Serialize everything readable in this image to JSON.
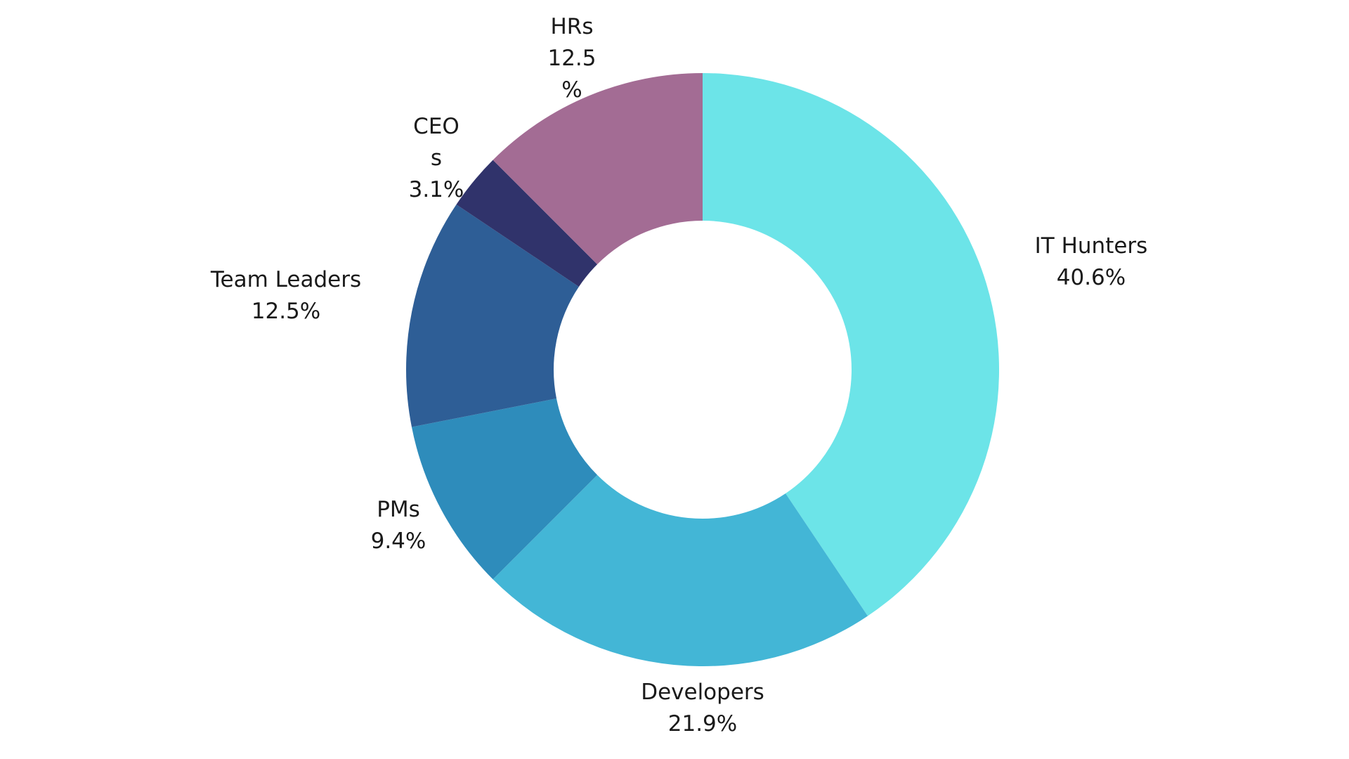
{
  "chart_data": {
    "type": "pie",
    "donut": true,
    "start": "12 o'clock",
    "direction": "clockwise",
    "slices": [
      {
        "label_lines": [
          "IT Hunters",
          "40.6%"
        ],
        "value": 40.6,
        "color": "#6ce4e8"
      },
      {
        "label_lines": [
          "Developers",
          "21.9%"
        ],
        "value": 21.9,
        "color": "#43b6d6"
      },
      {
        "label_lines": [
          "PMs",
          "9.4%"
        ],
        "value": 9.4,
        "color": "#2e8cbb"
      },
      {
        "label_lines": [
          "Team Leaders",
          "12.5%"
        ],
        "value": 12.5,
        "color": "#2e5e96"
      },
      {
        "label_lines": [
          "CEO",
          "s",
          "3.1%"
        ],
        "value": 3.1,
        "color": "#30336b"
      },
      {
        "label_lines": [
          "HRs",
          "12.5",
          "%"
        ],
        "value": 12.5,
        "color": "#a36c94"
      }
    ]
  }
}
